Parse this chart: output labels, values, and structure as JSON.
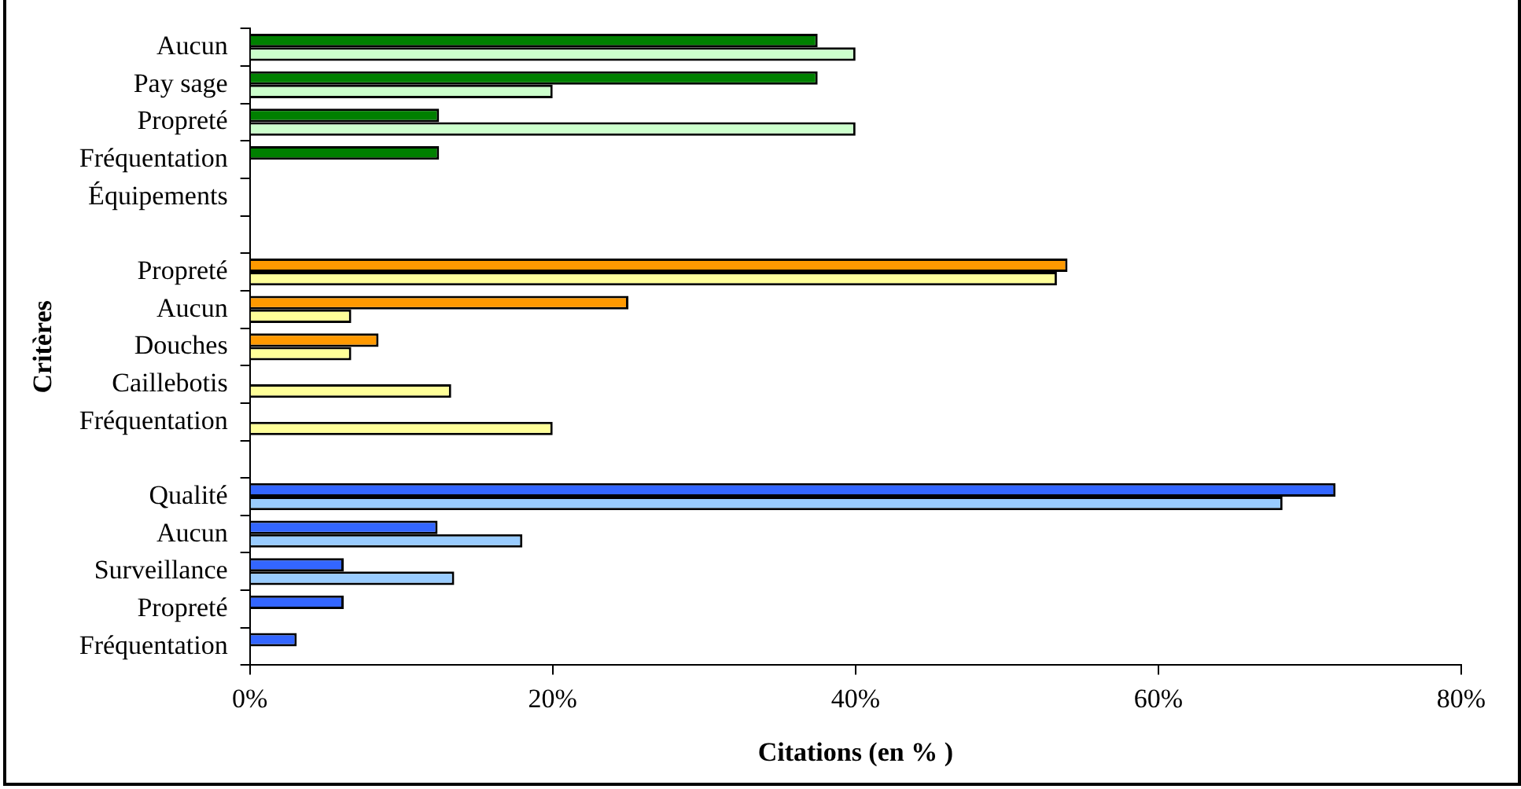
{
  "chart_data": {
    "type": "bar",
    "orientation": "horizontal",
    "xlabel": "Citations (en % )",
    "ylabel": "Critères",
    "categories": [
      "Aucun",
      "Pay sage",
      "Propreté",
      "Fréquentation",
      "Équipements",
      null,
      "Propreté",
      "Aucun",
      "Douches",
      "Caillebotis",
      "Fréquentation",
      null,
      "Qualité",
      "Aucun",
      "Surveillance",
      "Propreté",
      "Fréquentation"
    ],
    "series": [
      {
        "colors": [
          "#008000",
          "#008000",
          "#008000",
          "#008000",
          "#008000",
          null,
          "#ff9900",
          "#ff9900",
          "#ff9900",
          "#ff9900",
          "#ff9900",
          null,
          "#3366ff",
          "#3366ff",
          "#3366ff",
          "#3366ff",
          "#3366ff"
        ],
        "values": [
          37.5,
          37.5,
          12.5,
          12.5,
          null,
          null,
          54,
          25,
          8.5,
          null,
          null,
          null,
          71.7,
          12.4,
          6.2,
          6.2,
          3.1
        ]
      },
      {
        "colors": [
          "#ccffcc",
          "#ccffcc",
          "#ccffcc",
          "#ccffcc",
          "#ccffcc",
          null,
          "#ffff99",
          "#ffff99",
          "#ffff99",
          "#ffff99",
          "#ffff99",
          null,
          "#99ccff",
          "#99ccff",
          "#99ccff",
          "#99ccff",
          "#99ccff"
        ],
        "values": [
          40,
          20,
          40,
          null,
          null,
          null,
          53.3,
          6.7,
          6.7,
          13.3,
          20,
          null,
          68.2,
          18,
          13.5,
          null,
          null
        ]
      }
    ],
    "xlim": [
      0,
      80
    ],
    "xticks": [
      {
        "value": 0,
        "label": "0%"
      },
      {
        "value": 20,
        "label": "20%"
      },
      {
        "value": 40,
        "label": "40%"
      },
      {
        "value": 60,
        "label": "60%"
      },
      {
        "value": 80,
        "label": "80%"
      }
    ],
    "grid": false,
    "legend": false
  }
}
